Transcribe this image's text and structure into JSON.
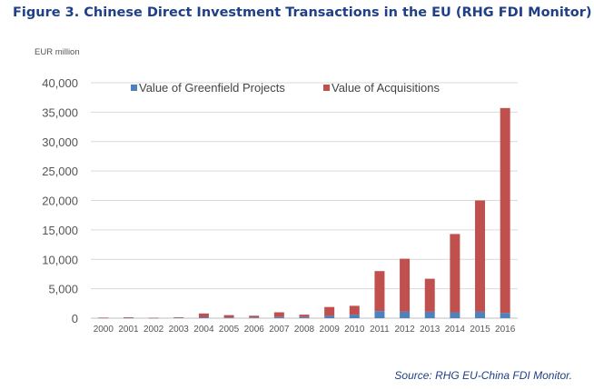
{
  "figure_title": "Figure 3. Chinese Direct Investment Transactions in the EU (RHG FDI Monitor)",
  "source": "Source: RHG EU-China FDI Monitor.",
  "colors": {
    "greenfield": "#4f81bd",
    "acquisitions": "#c0504d",
    "title": "#1f3f86",
    "gridline": "#d9d9d9"
  },
  "chart_data": {
    "type": "bar",
    "stacked": true,
    "title": "Figure 3. Chinese Direct Investment Transactions in the EU (RHG FDI Monitor)",
    "ylabel": "EUR million",
    "xlabel": "",
    "ylim": [
      0,
      40000
    ],
    "yticks": [
      0,
      5000,
      10000,
      15000,
      20000,
      25000,
      30000,
      35000,
      40000
    ],
    "ytick_labels": [
      "0",
      "5,000",
      "10,000",
      "15,000",
      "20,000",
      "25,000",
      "30,000",
      "35,000",
      "40,000"
    ],
    "grid": true,
    "legend_position": "top",
    "categories": [
      "2000",
      "2001",
      "2002",
      "2003",
      "2004",
      "2005",
      "2006",
      "2007",
      "2008",
      "2009",
      "2010",
      "2011",
      "2012",
      "2013",
      "2014",
      "2015",
      "2016"
    ],
    "series": [
      {
        "name": "Value of Greenfield Projects",
        "color": "#4f81bd",
        "values": [
          50,
          60,
          40,
          80,
          150,
          120,
          120,
          200,
          200,
          400,
          600,
          1200,
          1100,
          1100,
          1000,
          1100,
          900
        ]
      },
      {
        "name": "Value of Acquisitions",
        "color": "#c0504d",
        "values": [
          50,
          90,
          20,
          60,
          650,
          400,
          300,
          800,
          400,
          1500,
          1500,
          6800,
          9000,
          5600,
          13300,
          18900,
          34800
        ]
      }
    ]
  }
}
